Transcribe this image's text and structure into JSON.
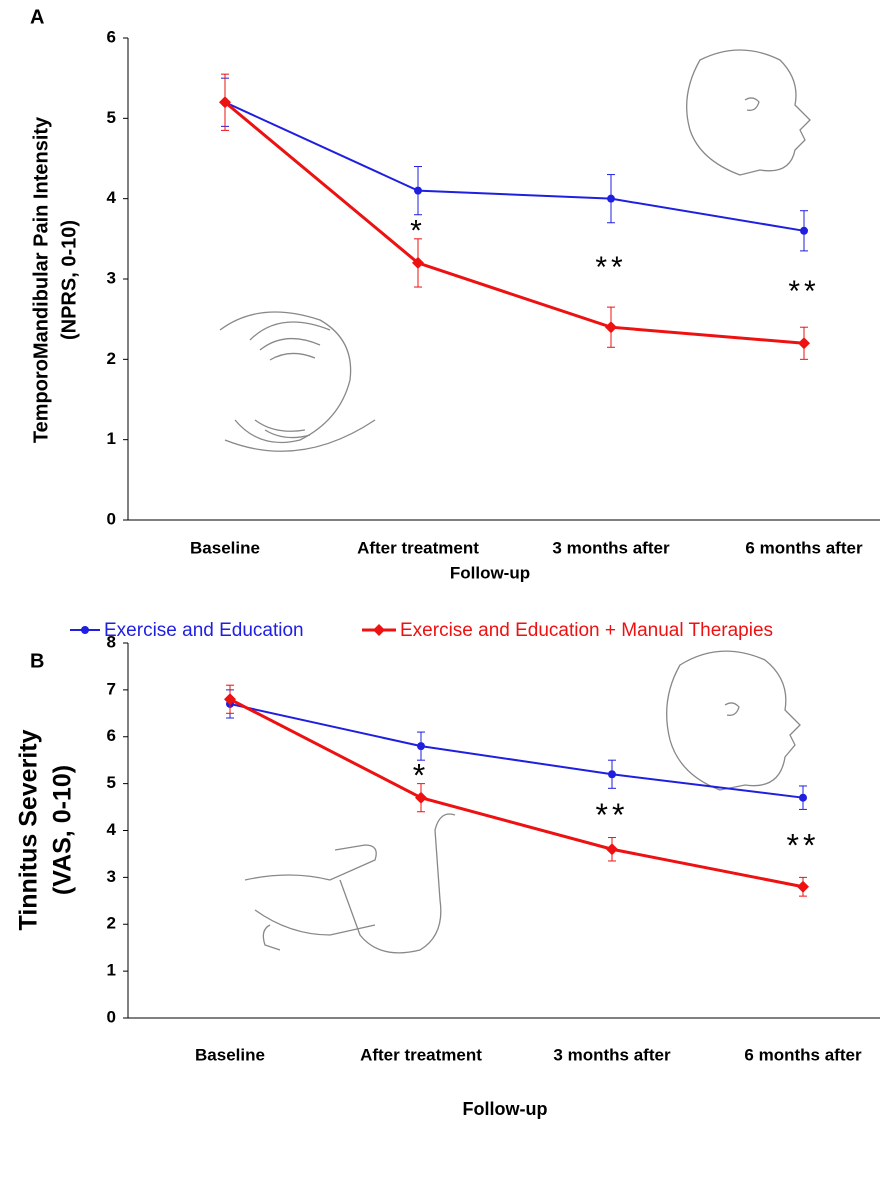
{
  "chart_data": [
    {
      "type": "line",
      "panel_label": "A",
      "ylabel": [
        "TemporoMandibular Pain Intensity",
        "(NPRS, 0-10)"
      ],
      "xlabel": "Follow-up",
      "categories": [
        "Baseline",
        "After treatment",
        "3 months after",
        "6 months after"
      ],
      "series": [
        {
          "color": "#1f1fe0",
          "marker": "circle",
          "values": [
            5.2,
            4.1,
            4.0,
            3.6
          ],
          "errors": [
            0.3,
            0.3,
            0.3,
            0.25
          ]
        },
        {
          "color": "#ee1111",
          "marker": "diamond",
          "values": [
            5.2,
            3.2,
            2.4,
            2.2
          ],
          "errors": [
            0.35,
            0.3,
            0.25,
            0.2
          ]
        }
      ],
      "annotations": [
        null,
        "*",
        "**",
        "**"
      ],
      "ylim": [
        0,
        6
      ],
      "yticks": [
        0,
        1,
        2,
        3,
        4,
        5,
        6
      ]
    },
    {
      "type": "line",
      "panel_label": "B",
      "ylabel": [
        "Tinnitus Severity",
        "(VAS, 0-10)"
      ],
      "xlabel": "Follow-up",
      "categories": [
        "Baseline",
        "After treatment",
        "3 months after",
        "6 months after"
      ],
      "series": [
        {
          "name": "Exercise and Education",
          "color": "#1f1fe0",
          "marker": "circle",
          "values": [
            6.7,
            5.8,
            5.2,
            4.7
          ],
          "errors": [
            0.3,
            0.3,
            0.3,
            0.25
          ]
        },
        {
          "name": "Exercise and Education + Manual Therapies",
          "color": "#ee1111",
          "marker": "diamond",
          "values": [
            6.8,
            4.7,
            3.6,
            2.8
          ],
          "errors": [
            0.3,
            0.3,
            0.25,
            0.2
          ]
        }
      ],
      "annotations": [
        null,
        "*",
        "**",
        "**"
      ],
      "ylim": [
        0,
        8
      ],
      "yticks": [
        0,
        1,
        2,
        3,
        4,
        5,
        6,
        7,
        8
      ],
      "legend": "top"
    }
  ]
}
